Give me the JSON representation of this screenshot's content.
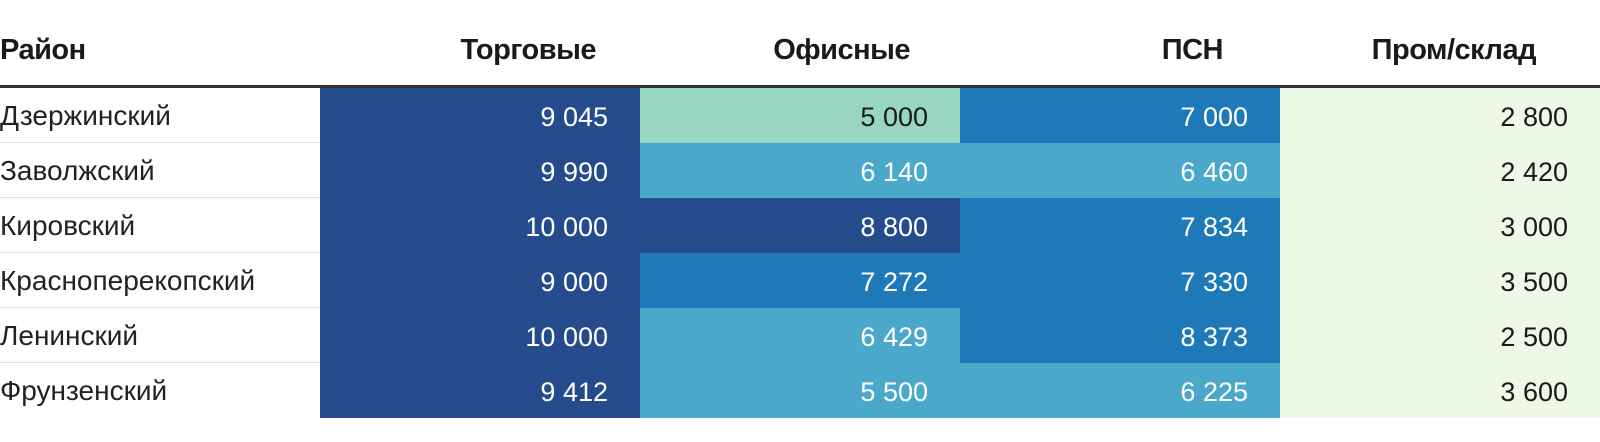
{
  "chart_data": {
    "type": "table",
    "columns": [
      "Район",
      "Торговые",
      "Офисные",
      "ПСН",
      "Пром/склад"
    ],
    "rows": [
      {
        "name": "Дзержинский",
        "values": [
          9045,
          5000,
          7000,
          2800
        ],
        "display": [
          "9 045",
          "5 000",
          "7 000",
          "2 800"
        ]
      },
      {
        "name": "Заволжский",
        "values": [
          9990,
          6140,
          6460,
          2420
        ],
        "display": [
          "9 990",
          "6 140",
          "6 460",
          "2 420"
        ]
      },
      {
        "name": "Кировский",
        "values": [
          10000,
          8800,
          7834,
          3000
        ],
        "display": [
          "10 000",
          "8 800",
          "7 834",
          "3 000"
        ]
      },
      {
        "name": "Красноперекопский",
        "values": [
          9000,
          7272,
          7330,
          3500
        ],
        "display": [
          "9 000",
          "7 272",
          "7 330",
          "3 500"
        ]
      },
      {
        "name": "Ленинский",
        "values": [
          10000,
          6429,
          8373,
          2500
        ],
        "display": [
          "10 000",
          "6 429",
          "8 373",
          "2 500"
        ]
      },
      {
        "name": "Фрунзенский",
        "values": [
          9412,
          5500,
          6225,
          3600
        ],
        "display": [
          "9 412",
          "5 500",
          "6 225",
          "3 600"
        ]
      }
    ],
    "color_scale": {
      "thresholds": [
        4000,
        5500,
        7000,
        8500
      ],
      "colors": [
        "#edf8e6",
        "#98d6c3",
        "#4aa8cb",
        "#1e79b8",
        "#264b8c"
      ],
      "text_colors": [
        "#1a1a1a",
        "#1a1a1a",
        "#ffffff",
        "#ffffff",
        "#ffffff"
      ]
    }
  }
}
